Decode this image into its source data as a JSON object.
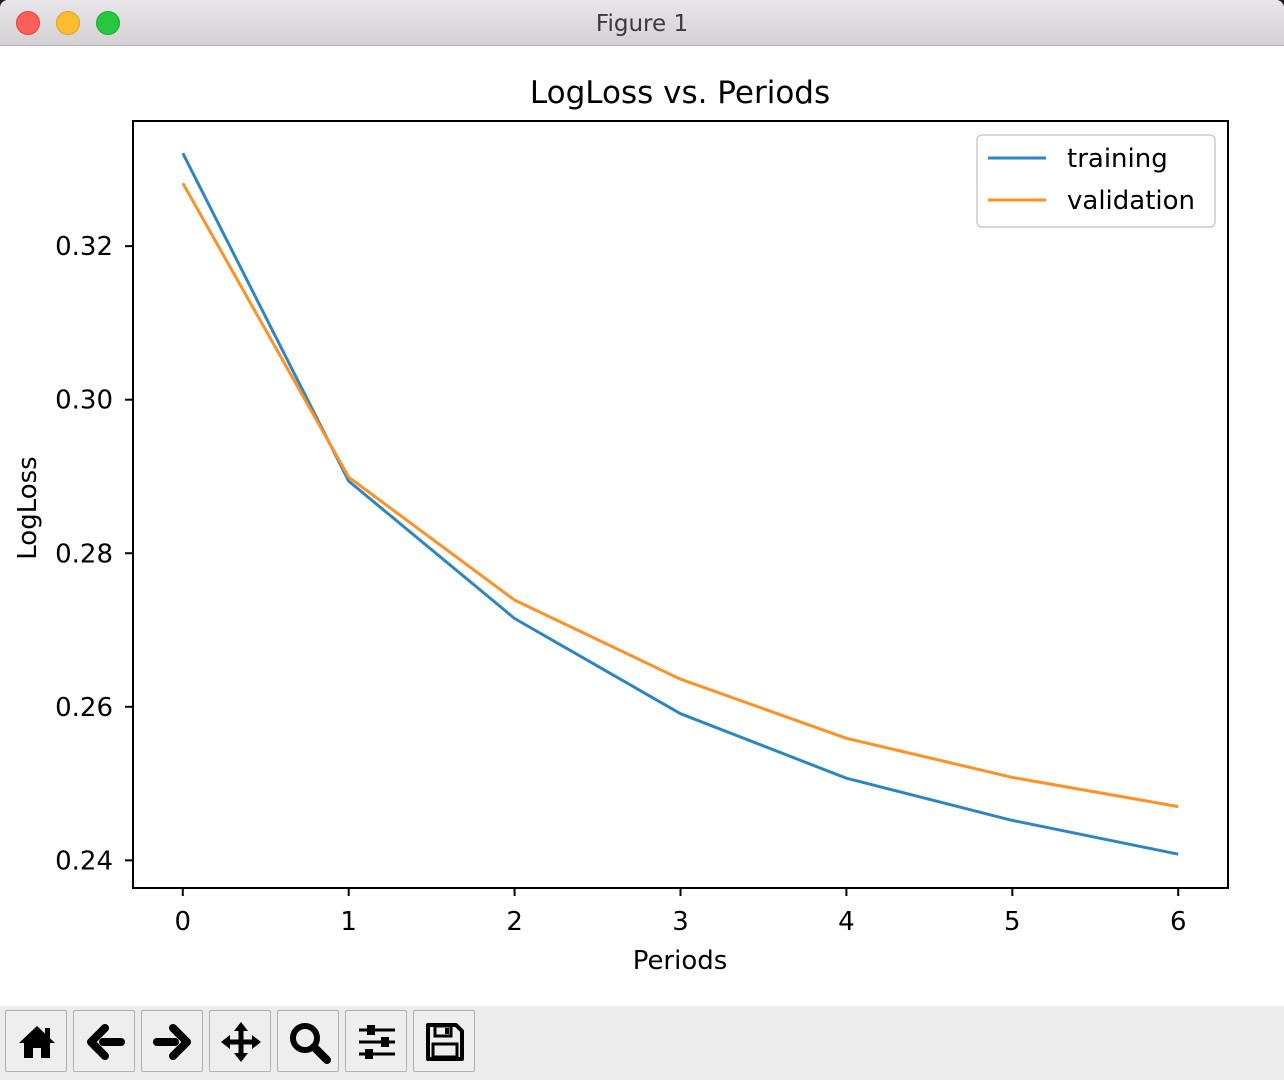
{
  "window": {
    "title": "Figure 1"
  },
  "toolbar": {
    "buttons": [
      {
        "name": "home",
        "icon": "home-icon"
      },
      {
        "name": "back",
        "icon": "arrow-left-icon"
      },
      {
        "name": "forward",
        "icon": "arrow-right-icon"
      },
      {
        "name": "pan",
        "icon": "move-icon"
      },
      {
        "name": "zoom",
        "icon": "magnifier-icon"
      },
      {
        "name": "configure-subplots",
        "icon": "sliders-icon"
      },
      {
        "name": "save",
        "icon": "floppy-disk-icon"
      }
    ]
  },
  "chart_data": {
    "type": "line",
    "title": "LogLoss vs. Periods",
    "xlabel": "Periods",
    "ylabel": "LogLoss",
    "x": [
      0,
      1,
      2,
      3,
      4,
      5,
      6
    ],
    "xlim": [
      -0.3,
      6.3
    ],
    "ylim": [
      0.2364,
      0.3363
    ],
    "xticks": [
      "0",
      "1",
      "2",
      "3",
      "4",
      "5",
      "6"
    ],
    "yticks": [
      "0.24",
      "0.26",
      "0.28",
      "0.30",
      "0.32"
    ],
    "ytick_values": [
      0.24,
      0.26,
      0.28,
      0.3,
      0.32
    ],
    "legend_position": "top-right",
    "grid": false,
    "series": [
      {
        "name": "training",
        "color": "#2e86c1",
        "values": [
          0.3321,
          0.2894,
          0.2715,
          0.2591,
          0.2507,
          0.2452,
          0.2408
        ]
      },
      {
        "name": "validation",
        "color": "#ff9126",
        "values": [
          0.3282,
          0.2899,
          0.2739,
          0.2636,
          0.2559,
          0.2508,
          0.247
        ]
      }
    ]
  }
}
